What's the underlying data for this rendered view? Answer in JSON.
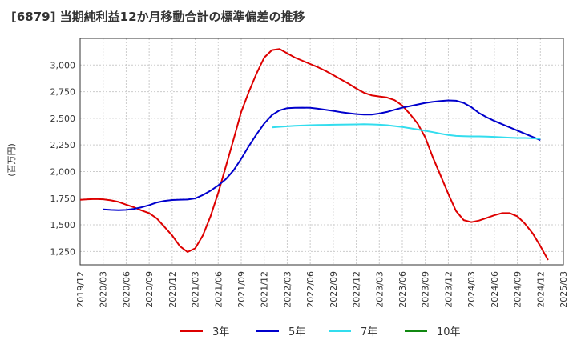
{
  "title": "[6879]  当期純利益12か月移動合計の標準偏差の推移",
  "ylabel": "(百万円)",
  "colors": {
    "3年": "#dd0000",
    "5年": "#0000cc",
    "7年": "#33ddee",
    "10年": "#118811",
    "grid": "#cccccc",
    "axis": "#333333"
  },
  "chart_data": {
    "type": "line",
    "title": "[6879]  当期純利益12か月移動合計の標準偏差の推移",
    "ylabel": "(百万円)",
    "ylim": [
      1125,
      3250
    ],
    "yticks": [
      1250,
      1500,
      1750,
      2000,
      2250,
      2500,
      2750,
      3000
    ],
    "ytick_labels": [
      "1,250",
      "1,500",
      "1,750",
      "2,000",
      "2,250",
      "2,500",
      "2,750",
      "3,000"
    ],
    "xlim": [
      "2019/12",
      "2025/03"
    ],
    "xtick_labels": [
      "2019/12",
      "2020/03",
      "2020/06",
      "2020/09",
      "2020/12",
      "2021/03",
      "2021/06",
      "2021/09",
      "2021/12",
      "2022/03",
      "2022/06",
      "2022/09",
      "2022/12",
      "2023/03",
      "2023/06",
      "2023/09",
      "2023/12",
      "2024/03",
      "2024/06",
      "2024/09",
      "2024/12",
      "2025/03"
    ],
    "grid": true,
    "legend_position": "bottom",
    "series": [
      {
        "name": "3年",
        "points": [
          [
            "2019/12",
            1735
          ],
          [
            "2020/01",
            1740
          ],
          [
            "2020/02",
            1742
          ],
          [
            "2020/03",
            1740
          ],
          [
            "2020/04",
            1730
          ],
          [
            "2020/05",
            1715
          ],
          [
            "2020/06",
            1690
          ],
          [
            "2020/07",
            1665
          ],
          [
            "2020/08",
            1635
          ],
          [
            "2020/09",
            1610
          ],
          [
            "2020/10",
            1560
          ],
          [
            "2020/11",
            1480
          ],
          [
            "2020/12",
            1400
          ],
          [
            "2021/01",
            1300
          ],
          [
            "2021/02",
            1245
          ],
          [
            "2021/03",
            1280
          ],
          [
            "2021/04",
            1400
          ],
          [
            "2021/05",
            1580
          ],
          [
            "2021/06",
            1800
          ],
          [
            "2021/07",
            2050
          ],
          [
            "2021/08",
            2300
          ],
          [
            "2021/09",
            2560
          ],
          [
            "2021/10",
            2750
          ],
          [
            "2021/11",
            2920
          ],
          [
            "2021/12",
            3070
          ],
          [
            "2022/01",
            3140
          ],
          [
            "2022/02",
            3150
          ],
          [
            "2022/03",
            3110
          ],
          [
            "2022/04",
            3070
          ],
          [
            "2022/05",
            3040
          ],
          [
            "2022/06",
            3010
          ],
          [
            "2022/07",
            2980
          ],
          [
            "2022/08",
            2945
          ],
          [
            "2022/09",
            2905
          ],
          [
            "2022/10",
            2865
          ],
          [
            "2022/11",
            2825
          ],
          [
            "2022/12",
            2780
          ],
          [
            "2023/01",
            2740
          ],
          [
            "2023/02",
            2715
          ],
          [
            "2023/03",
            2705
          ],
          [
            "2023/04",
            2695
          ],
          [
            "2023/05",
            2670
          ],
          [
            "2023/06",
            2620
          ],
          [
            "2023/07",
            2540
          ],
          [
            "2023/08",
            2450
          ],
          [
            "2023/09",
            2320
          ],
          [
            "2023/10",
            2130
          ],
          [
            "2023/11",
            1960
          ],
          [
            "2023/12",
            1790
          ],
          [
            "2024/01",
            1630
          ],
          [
            "2024/02",
            1545
          ],
          [
            "2024/03",
            1525
          ],
          [
            "2024/04",
            1540
          ],
          [
            "2024/05",
            1565
          ],
          [
            "2024/06",
            1590
          ],
          [
            "2024/07",
            1610
          ],
          [
            "2024/08",
            1610
          ],
          [
            "2024/09",
            1580
          ],
          [
            "2024/10",
            1510
          ],
          [
            "2024/11",
            1420
          ],
          [
            "2024/12",
            1300
          ],
          [
            "2025/01",
            1170
          ]
        ]
      },
      {
        "name": "5年",
        "points": [
          [
            "2020/03",
            1645
          ],
          [
            "2020/04",
            1640
          ],
          [
            "2020/05",
            1638
          ],
          [
            "2020/06",
            1640
          ],
          [
            "2020/07",
            1650
          ],
          [
            "2020/08",
            1665
          ],
          [
            "2020/09",
            1685
          ],
          [
            "2020/10",
            1710
          ],
          [
            "2020/11",
            1725
          ],
          [
            "2020/12",
            1733
          ],
          [
            "2021/01",
            1736
          ],
          [
            "2021/02",
            1738
          ],
          [
            "2021/03",
            1748
          ],
          [
            "2021/04",
            1780
          ],
          [
            "2021/05",
            1820
          ],
          [
            "2021/06",
            1870
          ],
          [
            "2021/07",
            1930
          ],
          [
            "2021/08",
            2010
          ],
          [
            "2021/09",
            2120
          ],
          [
            "2021/10",
            2240
          ],
          [
            "2021/11",
            2350
          ],
          [
            "2021/12",
            2450
          ],
          [
            "2022/01",
            2530
          ],
          [
            "2022/02",
            2575
          ],
          [
            "2022/03",
            2595
          ],
          [
            "2022/04",
            2598
          ],
          [
            "2022/05",
            2600
          ],
          [
            "2022/06",
            2598
          ],
          [
            "2022/07",
            2590
          ],
          [
            "2022/08",
            2580
          ],
          [
            "2022/09",
            2570
          ],
          [
            "2022/10",
            2558
          ],
          [
            "2022/11",
            2548
          ],
          [
            "2022/12",
            2540
          ],
          [
            "2023/01",
            2535
          ],
          [
            "2023/02",
            2535
          ],
          [
            "2023/03",
            2545
          ],
          [
            "2023/04",
            2560
          ],
          [
            "2023/05",
            2580
          ],
          [
            "2023/06",
            2600
          ],
          [
            "2023/07",
            2615
          ],
          [
            "2023/08",
            2630
          ],
          [
            "2023/09",
            2645
          ],
          [
            "2023/10",
            2655
          ],
          [
            "2023/11",
            2662
          ],
          [
            "2023/12",
            2668
          ],
          [
            "2024/01",
            2665
          ],
          [
            "2024/02",
            2645
          ],
          [
            "2024/03",
            2605
          ],
          [
            "2024/04",
            2550
          ],
          [
            "2024/05",
            2510
          ],
          [
            "2024/06",
            2475
          ],
          [
            "2024/07",
            2445
          ],
          [
            "2024/08",
            2415
          ],
          [
            "2024/09",
            2385
          ],
          [
            "2024/10",
            2355
          ],
          [
            "2024/11",
            2325
          ],
          [
            "2024/12",
            2295
          ]
        ]
      },
      {
        "name": "7年",
        "points": [
          [
            "2022/01",
            2415
          ],
          [
            "2022/02",
            2420
          ],
          [
            "2022/03",
            2425
          ],
          [
            "2022/04",
            2430
          ],
          [
            "2022/05",
            2432
          ],
          [
            "2022/06",
            2435
          ],
          [
            "2022/07",
            2437
          ],
          [
            "2022/08",
            2438
          ],
          [
            "2022/09",
            2440
          ],
          [
            "2022/10",
            2441
          ],
          [
            "2022/11",
            2442
          ],
          [
            "2022/12",
            2443
          ],
          [
            "2023/01",
            2444
          ],
          [
            "2023/02",
            2443
          ],
          [
            "2023/03",
            2440
          ],
          [
            "2023/04",
            2435
          ],
          [
            "2023/05",
            2427
          ],
          [
            "2023/06",
            2418
          ],
          [
            "2023/07",
            2407
          ],
          [
            "2023/08",
            2395
          ],
          [
            "2023/09",
            2383
          ],
          [
            "2023/10",
            2370
          ],
          [
            "2023/11",
            2356
          ],
          [
            "2023/12",
            2343
          ],
          [
            "2024/01",
            2335
          ],
          [
            "2024/02",
            2332
          ],
          [
            "2024/03",
            2330
          ],
          [
            "2024/04",
            2330
          ],
          [
            "2024/05",
            2328
          ],
          [
            "2024/06",
            2326
          ],
          [
            "2024/07",
            2322
          ],
          [
            "2024/08",
            2318
          ],
          [
            "2024/09",
            2315
          ],
          [
            "2024/10",
            2315
          ],
          [
            "2024/11",
            2312
          ],
          [
            "2024/12",
            2308
          ]
        ]
      },
      {
        "name": "10年",
        "points": []
      }
    ]
  }
}
